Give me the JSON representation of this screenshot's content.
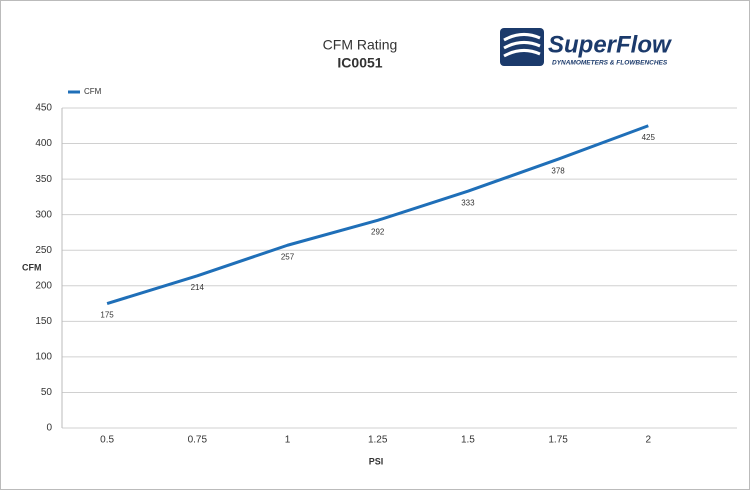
{
  "chart_data": {
    "type": "line",
    "title": "CFM Rating",
    "subtitle": "IC0051",
    "logo": {
      "name": "SuperFlow",
      "tagline": "DYNAMOMETERS & FLOWBENCHES"
    },
    "x_label": "PSI",
    "y_label": "CFM",
    "categories": [
      "0.5",
      "0.75",
      "1",
      "1.25",
      "1.5",
      "1.75",
      "2"
    ],
    "series": [
      {
        "name": "CFM",
        "color": "#1f6fb8",
        "values": [
          175,
          214,
          257,
          292,
          333,
          378,
          425
        ]
      }
    ],
    "ylim": [
      0,
      450
    ],
    "yticks": [
      0,
      50,
      100,
      150,
      200,
      250,
      300,
      350,
      400,
      450
    ],
    "grid": true,
    "legend": "top-left"
  }
}
